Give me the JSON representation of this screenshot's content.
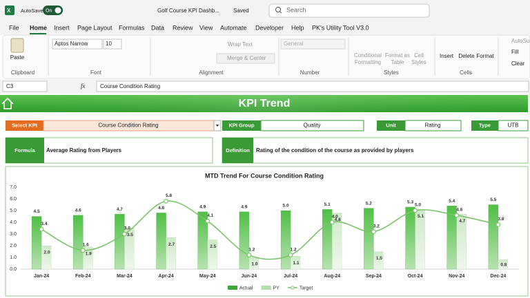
{
  "title_bar": {
    "autosave": "AutoSave",
    "autosave_state": "On",
    "file_name": "Golf Course KPI Dashb...",
    "save_status": "Saved",
    "search": "Search"
  },
  "menu": [
    "File",
    "Home",
    "Insert",
    "Page Layout",
    "Formulas",
    "Data",
    "Review",
    "View",
    "Automate",
    "Developer",
    "Help",
    "PK's Utility Tool V3.0"
  ],
  "ribbon": {
    "clipboard": {
      "label": "Clipboard",
      "paste": "Paste"
    },
    "font": {
      "label": "Font",
      "name": "Aptos Narrow",
      "size": "10"
    },
    "alignment": {
      "label": "Alignment",
      "wrap_text": "Wrap Text",
      "merge_center": "Merge & Center"
    },
    "number": {
      "label": "Number",
      "format": "General"
    },
    "styles": {
      "label": "Styles",
      "conditional_formatting": [
        "Conditional",
        "Formatting"
      ],
      "format_as_table": [
        "Format as",
        "Table"
      ],
      "cell_styles": [
        "Cell",
        "Styles"
      ]
    },
    "cells": {
      "label": "Cells",
      "insert": "Insert",
      "delete": "Delete",
      "format": "Format"
    },
    "editing": {
      "autosum": "AutoSum",
      "fill": "Fill",
      "clear": "Clear"
    }
  },
  "formula_bar": {
    "cell": "C3",
    "fx": "fx",
    "content": "Course Condition Rating"
  },
  "dashboard": {
    "title": "KPI Trend",
    "select_kpi": {
      "label": "Select KPI",
      "value": "Course Condition Rating"
    },
    "kpi_group": {
      "label": "KPI Group",
      "value": "Quality"
    },
    "unit": {
      "label": "Unit",
      "value": "Rating"
    },
    "type": {
      "label": "Type",
      "value": "UTB"
    },
    "formula": {
      "label": "Formula",
      "value": "Average Rating from Players"
    },
    "definition": {
      "label": "Definition",
      "value": "Rating of the condition of the course as provided by players"
    }
  },
  "chart_data": {
    "type": "combo",
    "title": "MTD Trend For Course Condition Rating",
    "categories": [
      "Jan-24",
      "Feb-24",
      "Mar-24",
      "Apr-24",
      "May-24",
      "Jun-24",
      "Jul-24",
      "Aug-24",
      "Sep-24",
      "Oct-24",
      "Nov-24",
      "Dec-24"
    ],
    "series": [
      {
        "name": "Actual",
        "type": "bar",
        "color": "#3aa935",
        "values": [
          4.5,
          4.6,
          4.7,
          4.8,
          4.9,
          4.9,
          5,
          5.1,
          5.2,
          5.3,
          5.4,
          5.5
        ],
        "value_labels": [
          "4.5",
          "4.6",
          "4.7",
          "4.8",
          "4.9",
          "4.9",
          "5.0",
          "5.1",
          "5.2",
          "5.3",
          "5.4",
          "5.5"
        ]
      },
      {
        "name": "PY",
        "type": "bar",
        "color": "#b5dcae",
        "values": [
          2,
          1.9,
          3.5,
          2.7,
          2.5,
          1,
          1.1,
          4.8,
          1.5,
          5.1,
          4.7,
          0.8
        ],
        "value_labels": [
          "2.0",
          "1.9",
          "3.5",
          "2.7",
          "2.5",
          "1.0",
          "1.1",
          "4.8",
          "1.5",
          "5.1",
          "4.7",
          "0.8"
        ]
      },
      {
        "name": "Target",
        "type": "line",
        "color": "#7cc46a",
        "values": [
          3.4,
          1.6,
          3,
          5.8,
          4.1,
          1.2,
          1.2,
          4,
          3.2,
          5,
          4.6,
          3.8
        ],
        "value_labels": [
          "3.4",
          "1.6",
          "3.0",
          "5.8",
          "4.1",
          "1.2",
          "1.2",
          "4.0",
          "3.2",
          "5.0",
          "4.6",
          "3.8"
        ]
      }
    ],
    "ylim": [
      0,
      7
    ],
    "yticks": [
      {
        "value": 0,
        "label": "0.0"
      },
      {
        "value": 1,
        "label": "1.0"
      },
      {
        "value": 2,
        "label": "2.0"
      },
      {
        "value": 3,
        "label": "3.0"
      },
      {
        "value": 4,
        "label": "4.0"
      },
      {
        "value": 5,
        "label": "5.0"
      },
      {
        "value": 6,
        "label": "6.0"
      },
      {
        "value": 7,
        "label": "7.0"
      }
    ],
    "grid": false,
    "legend": "bottom"
  }
}
